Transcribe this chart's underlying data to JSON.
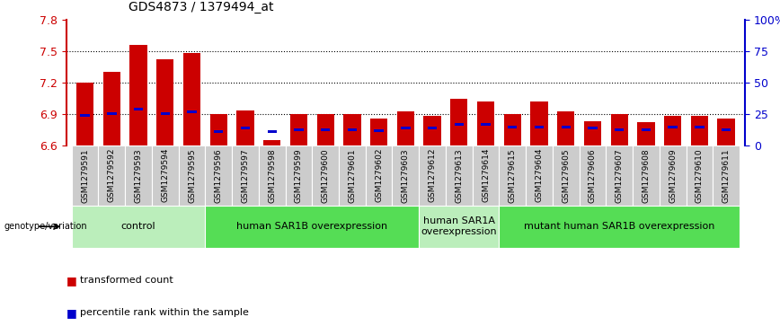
{
  "title": "GDS4873 / 1379494_at",
  "samples": [
    "GSM1279591",
    "GSM1279592",
    "GSM1279593",
    "GSM1279594",
    "GSM1279595",
    "GSM1279596",
    "GSM1279597",
    "GSM1279598",
    "GSM1279599",
    "GSM1279600",
    "GSM1279601",
    "GSM1279602",
    "GSM1279603",
    "GSM1279612",
    "GSM1279613",
    "GSM1279614",
    "GSM1279615",
    "GSM1279604",
    "GSM1279605",
    "GSM1279606",
    "GSM1279607",
    "GSM1279608",
    "GSM1279609",
    "GSM1279610",
    "GSM1279611"
  ],
  "red_values": [
    7.2,
    7.3,
    7.56,
    7.42,
    7.48,
    6.9,
    6.93,
    6.65,
    6.9,
    6.9,
    6.9,
    6.85,
    6.92,
    6.88,
    7.04,
    7.02,
    6.9,
    7.02,
    6.92,
    6.83,
    6.9,
    6.82,
    6.88,
    6.88,
    6.85
  ],
  "blue_values": [
    6.88,
    6.9,
    6.94,
    6.9,
    6.92,
    6.73,
    6.76,
    6.73,
    6.75,
    6.75,
    6.75,
    6.74,
    6.76,
    6.76,
    6.8,
    6.8,
    6.77,
    6.77,
    6.77,
    6.76,
    6.75,
    6.75,
    6.77,
    6.77,
    6.75
  ],
  "baseline": 6.6,
  "ylim_left": [
    6.6,
    7.8
  ],
  "ylim_right": [
    0,
    100
  ],
  "yticks_left": [
    6.6,
    6.9,
    7.2,
    7.5,
    7.8
  ],
  "yticks_right": [
    0,
    25,
    50,
    75,
    100
  ],
  "ytick_labels_right": [
    "0",
    "25",
    "50",
    "75",
    "100%"
  ],
  "dotted_yvals": [
    6.9,
    7.2,
    7.5
  ],
  "groups": [
    {
      "label": "control",
      "start": 0,
      "end": 4,
      "color": "#bbeebb"
    },
    {
      "label": "human SAR1B overexpression",
      "start": 5,
      "end": 12,
      "color": "#55dd55"
    },
    {
      "label": "human SAR1A\noverexpression",
      "start": 13,
      "end": 15,
      "color": "#bbeebb"
    },
    {
      "label": "mutant human SAR1B overexpression",
      "start": 16,
      "end": 24,
      "color": "#55dd55"
    }
  ],
  "bar_color_red": "#cc0000",
  "bar_color_blue": "#0000cc",
  "bar_width": 0.65,
  "blue_bar_width": 0.35,
  "blue_bar_height": 0.025,
  "bg_color": "#ffffff",
  "axis_color_left": "#cc0000",
  "axis_color_right": "#0000cc",
  "tick_fontsize": 9,
  "sample_fontsize": 6.5,
  "group_fontsize": 8,
  "legend_fontsize": 8,
  "genotype_label": "genotype/variation",
  "legend_red_label": "transformed count",
  "legend_blue_label": "percentile rank within the sample",
  "sample_box_color": "#cccccc",
  "title_fontsize": 10
}
